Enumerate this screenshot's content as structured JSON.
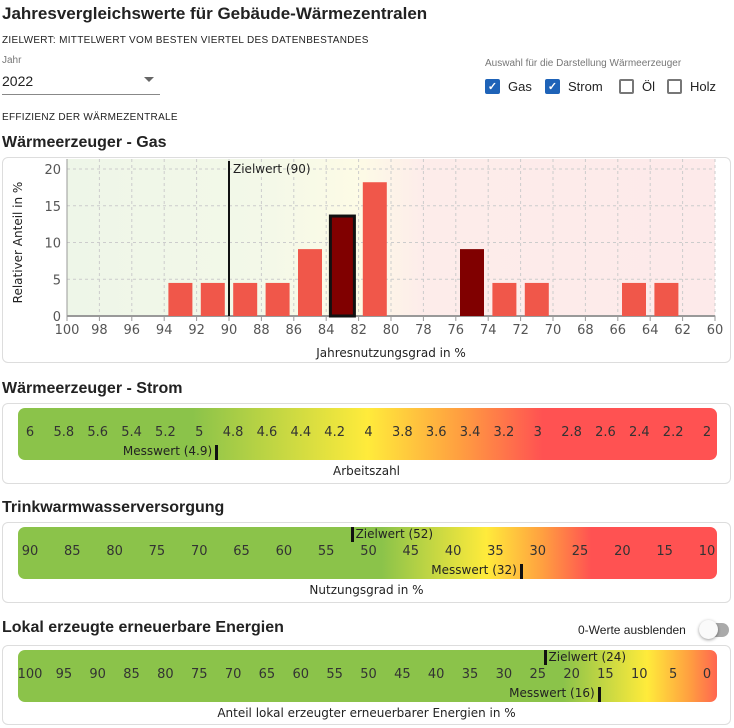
{
  "title": "Jahresvergleichswerte für Gebäude-Wärmezentralen",
  "subtitle": "ZIELWERT: MITTELWERT VOM BESTEN VIERTEL DES DATENBESTANDES",
  "year": {
    "label": "Jahr",
    "value": "2022"
  },
  "selection": {
    "label": "Auswahl für die Darstellung Wärmeerzeuger",
    "options": [
      {
        "label": "Gas",
        "checked": true
      },
      {
        "label": "Strom",
        "checked": true
      },
      {
        "label": "Öl",
        "checked": false
      },
      {
        "label": "Holz",
        "checked": false
      }
    ]
  },
  "section_label": "EFFIZIENZ DER WÄRMEZENTRALE",
  "gas": {
    "title": "Wärmeerzeuger - Gas"
  },
  "strom": {
    "title": "Wärmeerzeuger - Strom",
    "min": 2,
    "max": 6,
    "ticks": [
      "6",
      "5.8",
      "5.6",
      "5.4",
      "5.2",
      "5",
      "4.8",
      "4.6",
      "4.4",
      "4.2",
      "4",
      "3.8",
      "3.6",
      "3.4",
      "3.2",
      "3",
      "2.8",
      "2.6",
      "2.4",
      "2.2",
      "2"
    ],
    "messwert": 4.9,
    "messwert_label": "Messwert (4.9)",
    "axis_label": "Arbeitszahl"
  },
  "trinkwasser": {
    "title": "Trinkwarmwasserversorgung",
    "min": 10,
    "max": 90,
    "ticks": [
      "90",
      "85",
      "80",
      "75",
      "70",
      "65",
      "60",
      "55",
      "50",
      "45",
      "40",
      "35",
      "30",
      "25",
      "20",
      "15",
      "10"
    ],
    "zielwert": 52,
    "zielwert_label": "Zielwert (52)",
    "messwert": 32,
    "messwert_label": "Messwert (32)",
    "axis_label": "Nutzungsgrad in %"
  },
  "lokal": {
    "title": "Lokal erzeugte erneuerbare Energien",
    "toggle_label": "0-Werte ausblenden",
    "toggle_on": false,
    "min": 0,
    "max": 100,
    "ticks": [
      "100",
      "95",
      "90",
      "85",
      "80",
      "75",
      "70",
      "65",
      "60",
      "55",
      "50",
      "45",
      "40",
      "35",
      "30",
      "25",
      "20",
      "15",
      "10",
      "5",
      "0"
    ],
    "zielwert": 24,
    "zielwert_label": "Zielwert (24)",
    "messwert": 16,
    "messwert_label": "Messwert (16)",
    "axis_label": "Anteil lokal erzeugter erneuerbarer Energien in %"
  },
  "colors": {
    "bar": "#f0574a",
    "bar_dark": "#800000",
    "check": "#1e63b8",
    "green": "#8bc34a",
    "yellow": "#ffeb3b",
    "red": "#ff5252"
  },
  "chart_data": {
    "type": "bar",
    "xlabel": "Jahresnutzungsgrad in %",
    "ylabel": "Relativer Anteil in %",
    "xlim": [
      100,
      60
    ],
    "ylim": [
      0,
      20
    ],
    "xticks": [
      "100",
      "98",
      "96",
      "94",
      "92",
      "90",
      "88",
      "86",
      "84",
      "82",
      "80",
      "78",
      "76",
      "74",
      "72",
      "70",
      "68",
      "66",
      "64",
      "62",
      "60"
    ],
    "yticks": [
      "0",
      "5",
      "10",
      "15",
      "20"
    ],
    "grid": true,
    "zielwert": 90,
    "zielwert_label": "Zielwert (90)",
    "bars": [
      {
        "x": 93,
        "value": 4.5
      },
      {
        "x": 91,
        "value": 4.5
      },
      {
        "x": 89,
        "value": 4.5
      },
      {
        "x": 87,
        "value": 4.5
      },
      {
        "x": 85,
        "value": 9.1
      },
      {
        "x": 83,
        "value": 13.6,
        "highlight": true,
        "dark": true
      },
      {
        "x": 81,
        "value": 18.2
      },
      {
        "x": 75,
        "value": 9.1,
        "dark": true
      },
      {
        "x": 73,
        "value": 4.5
      },
      {
        "x": 71,
        "value": 4.5
      },
      {
        "x": 65,
        "value": 4.5
      },
      {
        "x": 63,
        "value": 4.5
      }
    ]
  }
}
